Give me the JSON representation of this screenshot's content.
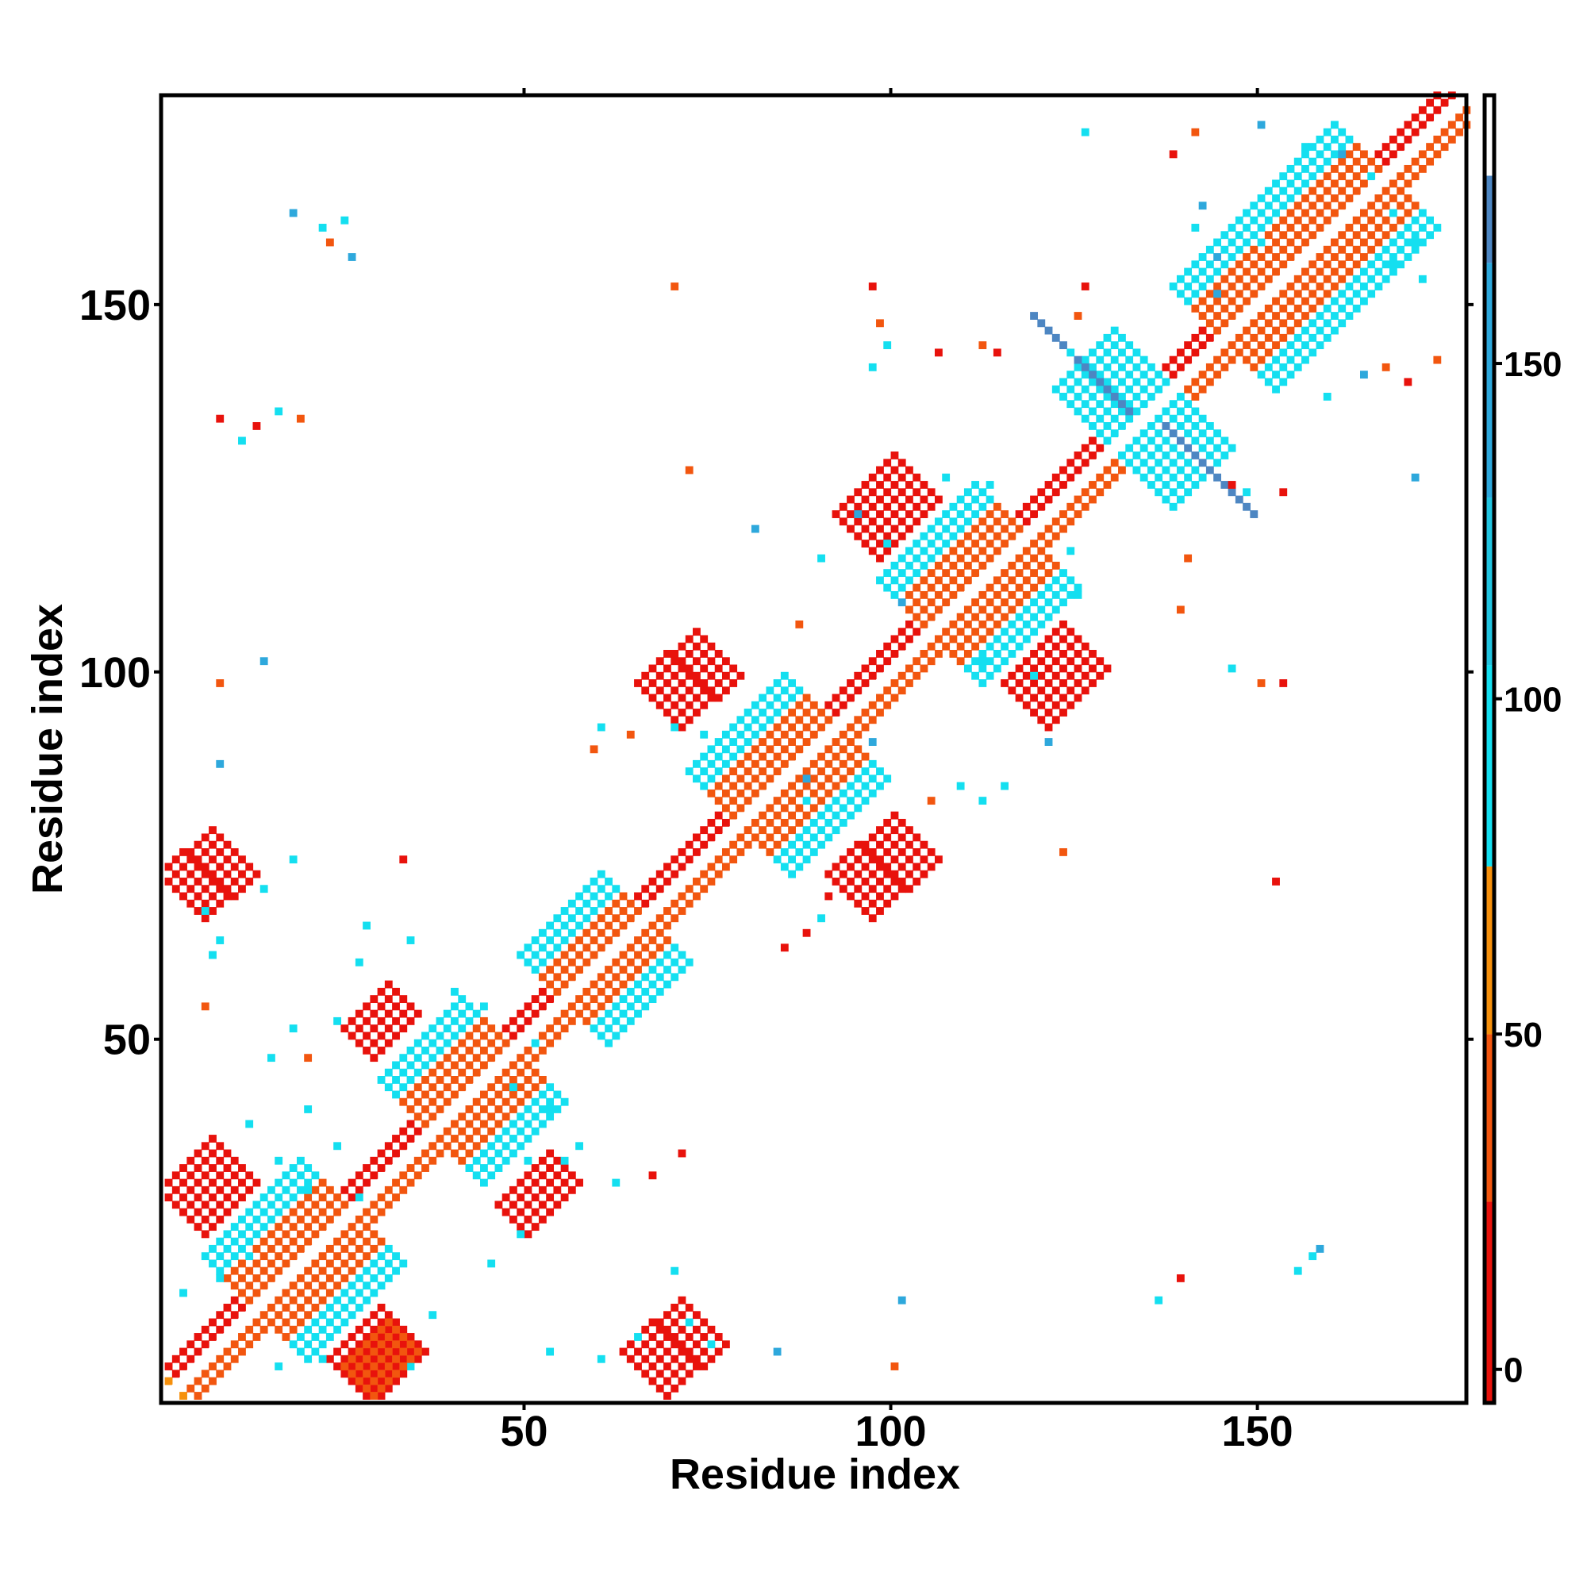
{
  "chart_data": {
    "type": "heatmap",
    "title": "",
    "xlabel": "Residue index",
    "ylabel": "Residue index",
    "xlim": [
      1,
      178
    ],
    "ylim": [
      1,
      178
    ],
    "x_ticks": [
      50,
      100,
      150
    ],
    "y_ticks": [
      50,
      100,
      150
    ],
    "colorbar": {
      "ticks": [
        0,
        50,
        100,
        150
      ],
      "range": [
        -5,
        190
      ],
      "bands": [
        {
          "from": -5,
          "to": 25,
          "color": "#e8120c"
        },
        {
          "from": 25,
          "to": 50,
          "color": "#f2560f"
        },
        {
          "from": 50,
          "to": 75,
          "color": "#f6900c"
        },
        {
          "from": 75,
          "to": 105,
          "color": "#14dff0"
        },
        {
          "from": 105,
          "to": 130,
          "color": "#22c4e0"
        },
        {
          "from": 130,
          "to": 165,
          "color": "#2ea8dc"
        },
        {
          "from": 165,
          "to": 178,
          "color": "#4d86c2"
        },
        {
          "from": 178,
          "to": 190,
          "color": "#ffffff"
        }
      ]
    },
    "segments": [
      {
        "x0": 2,
        "y0": 2,
        "x1": 178,
        "y1": 178,
        "w": 2,
        "v": 55
      },
      {
        "x0": 2,
        "y0": 4,
        "x1": 176,
        "y1": 178,
        "w": 1,
        "v": 5
      },
      {
        "x0": 4,
        "y0": 2,
        "x1": 178,
        "y1": 176,
        "w": 1,
        "v": 40
      },
      {
        "x0": 13,
        "y0": 13,
        "x1": 26,
        "y1": 26,
        "w": 7,
        "v": 100
      },
      {
        "x0": 13,
        "y0": 13,
        "x1": 26,
        "y1": 26,
        "w": 4,
        "v": 40
      },
      {
        "x0": 37,
        "y0": 37,
        "x1": 48,
        "y1": 48,
        "w": 7,
        "v": 100
      },
      {
        "x0": 37,
        "y0": 37,
        "x1": 48,
        "y1": 48,
        "w": 4,
        "v": 40
      },
      {
        "x0": 55,
        "y0": 55,
        "x1": 66,
        "y1": 66,
        "w": 6,
        "v": 100
      },
      {
        "x0": 55,
        "y0": 55,
        "x1": 66,
        "y1": 66,
        "w": 3,
        "v": 40
      },
      {
        "x0": 79,
        "y0": 79,
        "x1": 92,
        "y1": 92,
        "w": 7,
        "v": 100
      },
      {
        "x0": 79,
        "y0": 79,
        "x1": 92,
        "y1": 92,
        "w": 4,
        "v": 40
      },
      {
        "x0": 105,
        "y0": 105,
        "x1": 118,
        "y1": 118,
        "w": 7,
        "v": 100
      },
      {
        "x0": 105,
        "y0": 105,
        "x1": 118,
        "y1": 118,
        "w": 4,
        "v": 40
      },
      {
        "x0": 145,
        "y0": 145,
        "x1": 167,
        "y1": 167,
        "w": 7,
        "v": 100
      },
      {
        "x0": 145,
        "y0": 145,
        "x1": 167,
        "y1": 167,
        "w": 4,
        "v": 40
      },
      {
        "x0": 130,
        "y0": 130,
        "x1": 138,
        "y1": 138,
        "w": 8,
        "v": 100
      },
      {
        "x0": 26,
        "y0": 3,
        "x1": 33,
        "y1": 10,
        "w": 3,
        "v": 5
      },
      {
        "x0": 27,
        "y0": 3,
        "x1": 33,
        "y1": 9,
        "w": 2,
        "v": 40
      },
      {
        "x0": 66,
        "y0": 4,
        "x1": 74,
        "y1": 11,
        "w": 3,
        "v": 5
      },
      {
        "x0": 3,
        "y0": 26,
        "x1": 10,
        "y1": 33,
        "w": 3,
        "v": 5
      },
      {
        "x0": 48,
        "y0": 25,
        "x1": 55,
        "y1": 32,
        "w": 2,
        "v": 5
      },
      {
        "x0": 27,
        "y0": 49,
        "x1": 33,
        "y1": 55,
        "w": 2,
        "v": 5
      },
      {
        "x0": 3,
        "y0": 69,
        "x1": 10,
        "y1": 75,
        "w": 3,
        "v": 5
      },
      {
        "x0": 94,
        "y0": 69,
        "x1": 103,
        "y1": 77,
        "w": 3,
        "v": 5
      },
      {
        "x0": 68,
        "y0": 95,
        "x1": 76,
        "y1": 102,
        "w": 3,
        "v": 5
      },
      {
        "x0": 118,
        "y0": 95,
        "x1": 126,
        "y1": 103,
        "w": 3,
        "v": 5
      },
      {
        "x0": 95,
        "y0": 118,
        "x1": 103,
        "y1": 126,
        "w": 3,
        "v": 5
      },
      {
        "x0": 122,
        "y0": 145,
        "x1": 129,
        "y1": 138,
        "w": 3,
        "v": 170
      },
      {
        "x0": 140,
        "y0": 130,
        "x1": 146,
        "y1": 124,
        "w": 3,
        "v": 170
      }
    ],
    "dots": [
      [
        8,
        17,
        100
      ],
      [
        12,
        20,
        100
      ],
      [
        3,
        15,
        100
      ],
      [
        16,
        5,
        100
      ],
      [
        22,
        6,
        100
      ],
      [
        34,
        5,
        100
      ],
      [
        37,
        12,
        100
      ],
      [
        45,
        19,
        100
      ],
      [
        49,
        23,
        100
      ],
      [
        53,
        7,
        100
      ],
      [
        60,
        6,
        100
      ],
      [
        65,
        9,
        100
      ],
      [
        75,
        8,
        100
      ],
      [
        72,
        11,
        100
      ],
      [
        70,
        18,
        100
      ],
      [
        84,
        7,
        150
      ],
      [
        100,
        5,
        40
      ],
      [
        101,
        14,
        150
      ],
      [
        139,
        17,
        5
      ],
      [
        136,
        14,
        100
      ],
      [
        155,
        18,
        100
      ],
      [
        157,
        20,
        100
      ],
      [
        158,
        21,
        150
      ],
      [
        16,
        33,
        100
      ],
      [
        20,
        29,
        100
      ],
      [
        27,
        28,
        100
      ],
      [
        50,
        33,
        100
      ],
      [
        55,
        33,
        100
      ],
      [
        62,
        30,
        100
      ],
      [
        67,
        31,
        5
      ],
      [
        71,
        34,
        5
      ],
      [
        12,
        38,
        100
      ],
      [
        15,
        47,
        100
      ],
      [
        20,
        40,
        100
      ],
      [
        24,
        35,
        100
      ],
      [
        48,
        43,
        100
      ],
      [
        53,
        40,
        100
      ],
      [
        57,
        35,
        100
      ],
      [
        18,
        51,
        100
      ],
      [
        20,
        47,
        40
      ],
      [
        24,
        52,
        100
      ],
      [
        30,
        50,
        5
      ],
      [
        40,
        56,
        100
      ],
      [
        44,
        54,
        100
      ],
      [
        51,
        49,
        100
      ],
      [
        6,
        54,
        40
      ],
      [
        7,
        61,
        100
      ],
      [
        8,
        63,
        100
      ],
      [
        6,
        67,
        100
      ],
      [
        14,
        70,
        100
      ],
      [
        18,
        74,
        100
      ],
      [
        27,
        60,
        100
      ],
      [
        28,
        65,
        100
      ],
      [
        34,
        63,
        100
      ],
      [
        33,
        74,
        5
      ],
      [
        85,
        62,
        5
      ],
      [
        88,
        64,
        5
      ],
      [
        90,
        66,
        100
      ],
      [
        91,
        69,
        5
      ],
      [
        8,
        87,
        150
      ],
      [
        14,
        101,
        150
      ],
      [
        8,
        98,
        40
      ],
      [
        60,
        92,
        100
      ],
      [
        59,
        89,
        40
      ],
      [
        64,
        91,
        40
      ],
      [
        70,
        92,
        100
      ],
      [
        74,
        91,
        100
      ],
      [
        97,
        90,
        150
      ],
      [
        88,
        82,
        100
      ],
      [
        88,
        85,
        150
      ],
      [
        105,
        82,
        40
      ],
      [
        109,
        84,
        100
      ],
      [
        112,
        82,
        100
      ],
      [
        115,
        84,
        100
      ],
      [
        121,
        90,
        150
      ],
      [
        112,
        101,
        100
      ],
      [
        119,
        99,
        100
      ],
      [
        146,
        100,
        100
      ],
      [
        150,
        98,
        40
      ],
      [
        153,
        98,
        5
      ],
      [
        123,
        75,
        40
      ],
      [
        152,
        71,
        5
      ],
      [
        87,
        106,
        40
      ],
      [
        90,
        115,
        100
      ],
      [
        99,
        113,
        100
      ],
      [
        101,
        109,
        150
      ],
      [
        95,
        121,
        150
      ],
      [
        99,
        117,
        100
      ],
      [
        81,
        119,
        150
      ],
      [
        124,
        116,
        100
      ],
      [
        125,
        110,
        100
      ],
      [
        140,
        115,
        40
      ],
      [
        139,
        108,
        40
      ],
      [
        107,
        126,
        100
      ],
      [
        113,
        125,
        100
      ],
      [
        146,
        125,
        5
      ],
      [
        148,
        124,
        100
      ],
      [
        153,
        124,
        5
      ],
      [
        171,
        126,
        150
      ],
      [
        72,
        127,
        40
      ],
      [
        13,
        133,
        5
      ],
      [
        16,
        135,
        100
      ],
      [
        19,
        134,
        40
      ],
      [
        8,
        134,
        5
      ],
      [
        11,
        131,
        100
      ],
      [
        97,
        141,
        100
      ],
      [
        99,
        144,
        100
      ],
      [
        98,
        147,
        40
      ],
      [
        106,
        143,
        5
      ],
      [
        112,
        144,
        40
      ],
      [
        114,
        143,
        5
      ],
      [
        125,
        148,
        40
      ],
      [
        124,
        143,
        100
      ],
      [
        164,
        140,
        150
      ],
      [
        159,
        137,
        100
      ],
      [
        167,
        141,
        40
      ],
      [
        170,
        139,
        5
      ],
      [
        174,
        142,
        40
      ],
      [
        18,
        162,
        150
      ],
      [
        22,
        160,
        100
      ],
      [
        25,
        161,
        100
      ],
      [
        23,
        158,
        40
      ],
      [
        26,
        156,
        150
      ],
      [
        70,
        152,
        40
      ],
      [
        97,
        152,
        5
      ],
      [
        126,
        152,
        5
      ],
      [
        144,
        151,
        150
      ],
      [
        144,
        156,
        150
      ],
      [
        141,
        160,
        100
      ],
      [
        142,
        163,
        150
      ],
      [
        150,
        158,
        100
      ],
      [
        168,
        155,
        100
      ],
      [
        172,
        153,
        100
      ],
      [
        171,
        158,
        100
      ],
      [
        126,
        173,
        100
      ],
      [
        138,
        170,
        5
      ],
      [
        141,
        173,
        40
      ],
      [
        150,
        174,
        150
      ],
      [
        156,
        171,
        100
      ],
      [
        161,
        170,
        150
      ],
      [
        165,
        167,
        100
      ],
      [
        168,
        162,
        100
      ]
    ]
  }
}
